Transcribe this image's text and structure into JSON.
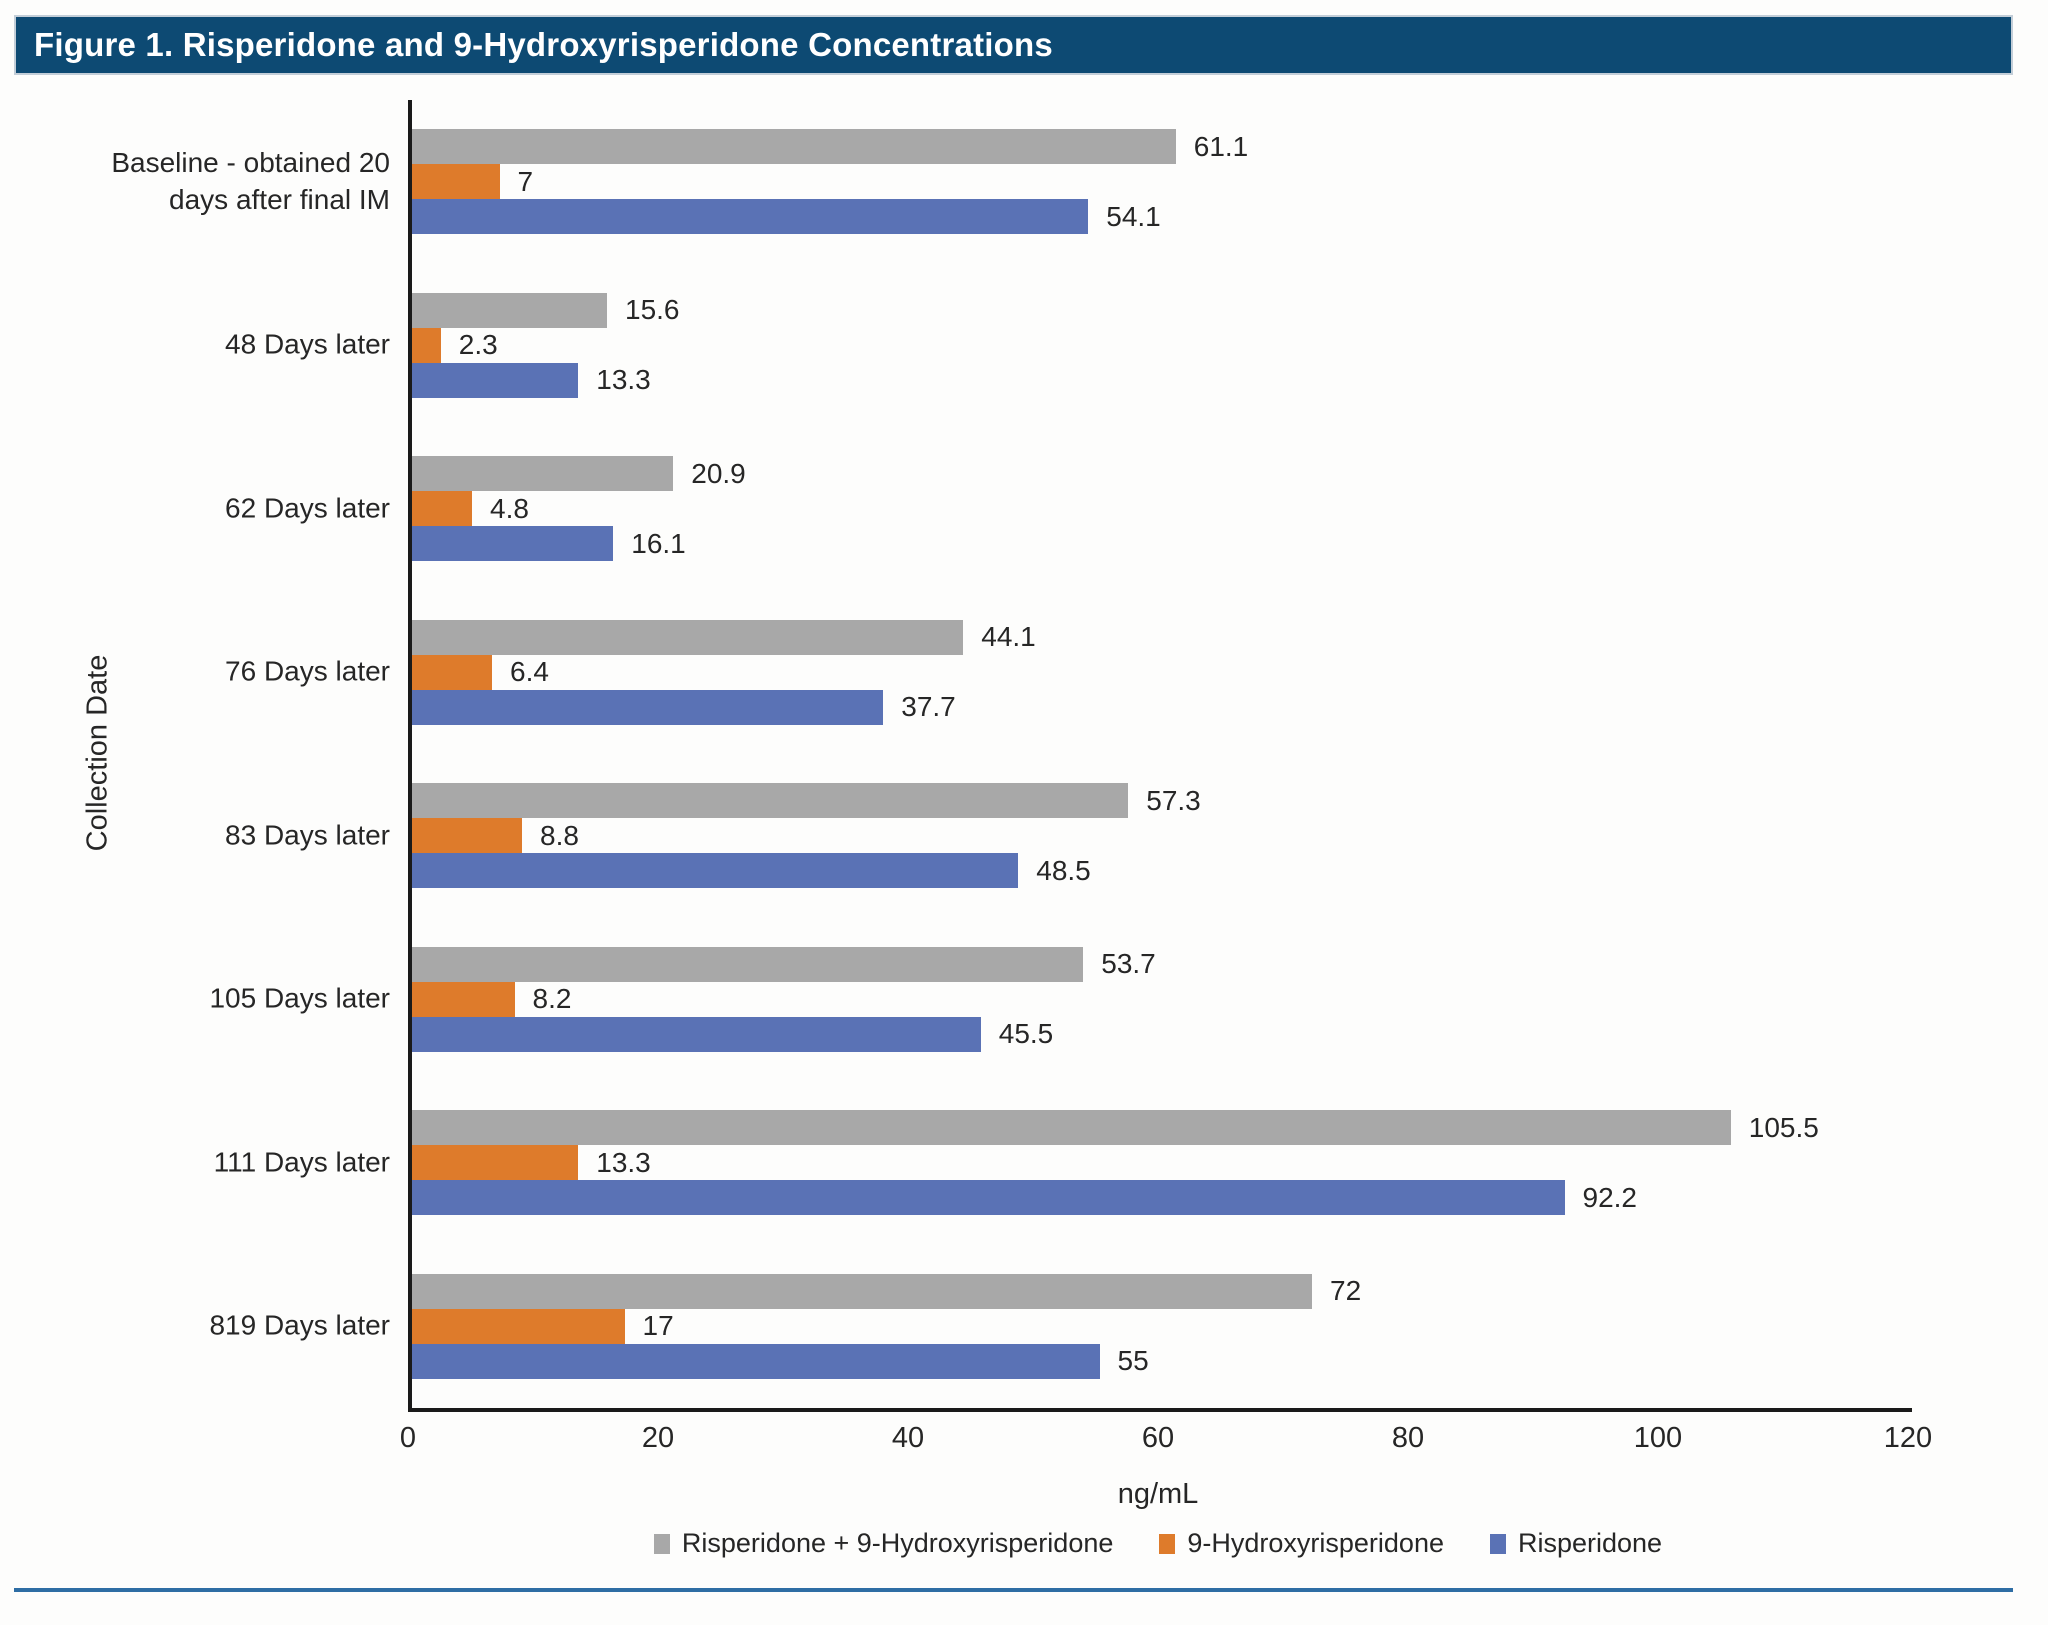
{
  "header": {
    "title": "Figure 1. Risperidone and 9-Hydroxyrisperidone Concentrations",
    "background": "#0d4a73",
    "text_color": "#ffffff"
  },
  "colors": {
    "gray_series": "#a8a8a8",
    "orange_series": "#de7b2b",
    "blue_series": "#5a72b5",
    "axis": "#1a1a1a",
    "bottom_rule": "#2e6da4"
  },
  "chart_data": {
    "type": "bar",
    "orientation": "horizontal",
    "title": "Figure 1. Risperidone and 9-Hydroxyrisperidone Concentrations",
    "xlabel": "ng/mL",
    "ylabel": "Collection Date",
    "xlim": [
      0,
      120
    ],
    "xticks": [
      "0",
      "20",
      "40",
      "60",
      "80",
      "100",
      "120"
    ],
    "grid": false,
    "legend_position": "bottom",
    "categories": [
      "Baseline - obtained 20\ndays after final IM",
      "48 Days later",
      "62 Days later",
      "76 Days later",
      "83 Days later",
      "105 Days later",
      "111 Days later",
      "819 Days later"
    ],
    "series": [
      {
        "name": "Risperidone + 9-Hydroxyrisperidone",
        "color": "#a8a8a8",
        "values": [
          61.1,
          15.6,
          20.9,
          44.1,
          57.3,
          53.7,
          105.5,
          72
        ],
        "labels": [
          "61.1",
          "15.6",
          "20.9",
          "44.1",
          "57.3",
          "53.7",
          "105.5",
          "72"
        ]
      },
      {
        "name": "9-Hydroxyrisperidone",
        "color": "#de7b2b",
        "values": [
          7,
          2.3,
          4.8,
          6.4,
          8.8,
          8.2,
          13.3,
          17
        ],
        "labels": [
          "7",
          "2.3",
          "4.8",
          "6.4",
          "8.8",
          "8.2",
          "13.3",
          "17"
        ]
      },
      {
        "name": "Risperidone",
        "color": "#5a72b5",
        "values": [
          54.1,
          13.3,
          16.1,
          37.7,
          48.5,
          45.5,
          92.2,
          55
        ],
        "labels": [
          "54.1",
          "13.3",
          "16.1",
          "37.7",
          "48.5",
          "45.5",
          "92.2",
          "55"
        ]
      }
    ]
  }
}
